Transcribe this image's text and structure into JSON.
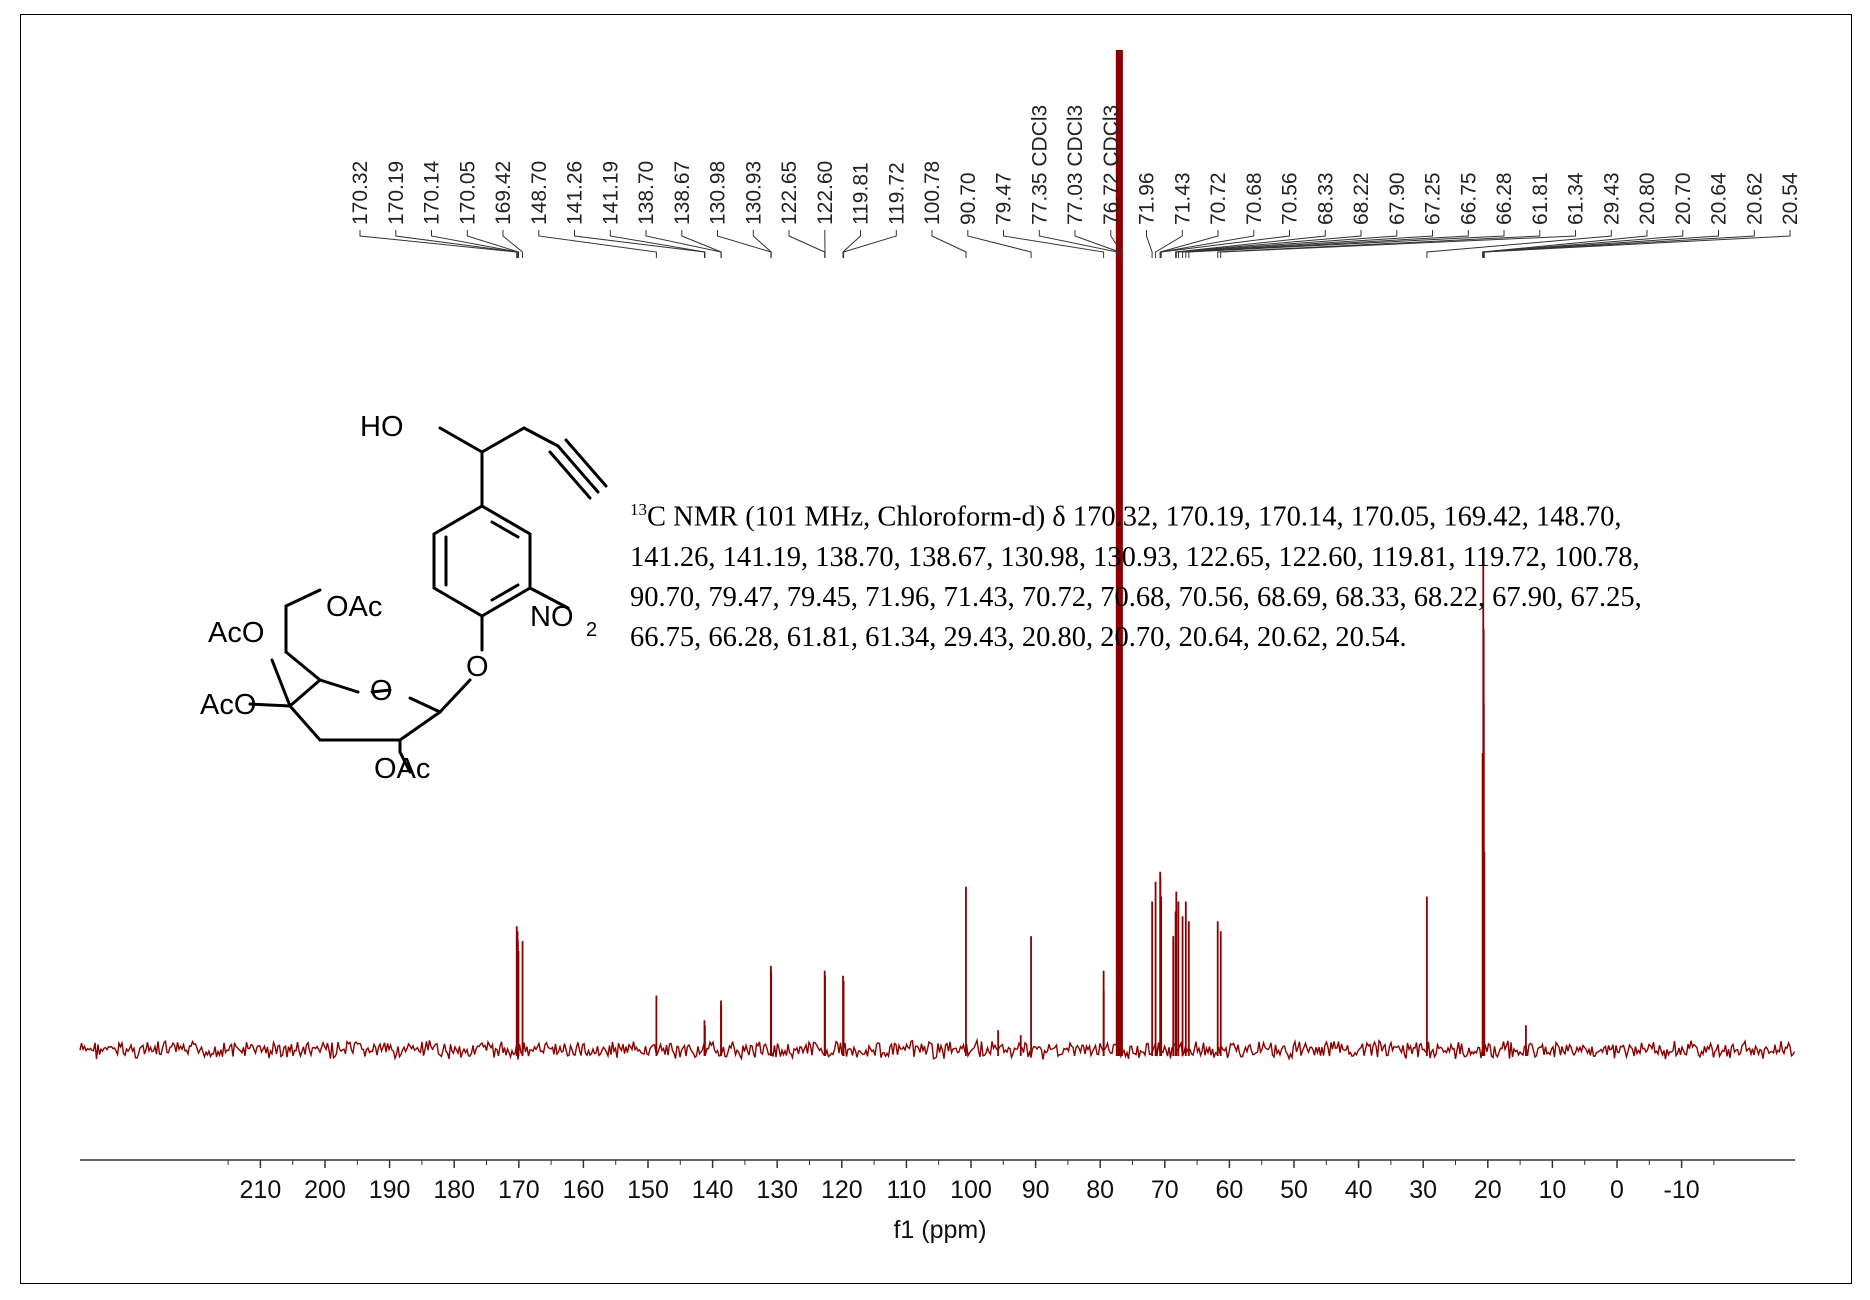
{
  "chart_data": {
    "type": "line",
    "title": "",
    "xlabel": "f1 (ppm)",
    "ylabel": "",
    "x_axis_reversed": true,
    "xlim": [
      220,
      -16
    ],
    "x_ticks": [
      210,
      200,
      190,
      180,
      170,
      160,
      150,
      140,
      130,
      120,
      110,
      100,
      90,
      80,
      70,
      60,
      50,
      40,
      30,
      20,
      10,
      0,
      -10
    ],
    "series": [
      {
        "color": "#8b0000",
        "peaks": [
          {
            "ppm": 170.32,
            "height": 0.25
          },
          {
            "ppm": 170.19,
            "height": 0.24
          },
          {
            "ppm": 170.14,
            "height": 0.22
          },
          {
            "ppm": 170.05,
            "height": 0.2
          },
          {
            "ppm": 169.42,
            "height": 0.22
          },
          {
            "ppm": 148.7,
            "height": 0.11
          },
          {
            "ppm": 141.26,
            "height": 0.06
          },
          {
            "ppm": 141.19,
            "height": 0.05
          },
          {
            "ppm": 138.7,
            "height": 0.1
          },
          {
            "ppm": 138.67,
            "height": 0.09
          },
          {
            "ppm": 130.98,
            "height": 0.17
          },
          {
            "ppm": 130.93,
            "height": 0.16
          },
          {
            "ppm": 122.65,
            "height": 0.16
          },
          {
            "ppm": 122.6,
            "height": 0.15
          },
          {
            "ppm": 119.81,
            "height": 0.15
          },
          {
            "ppm": 119.72,
            "height": 0.14
          },
          {
            "ppm": 100.78,
            "height": 0.33
          },
          {
            "ppm": 95.8,
            "height": 0.04
          },
          {
            "ppm": 92.3,
            "height": 0.03
          },
          {
            "ppm": 90.7,
            "height": 0.23
          },
          {
            "ppm": 79.47,
            "height": 0.16
          },
          {
            "ppm": 79.45,
            "height": 0.12
          },
          {
            "ppm": 77.35,
            "height": 2.2
          },
          {
            "ppm": 77.03,
            "height": 2.2
          },
          {
            "ppm": 76.72,
            "height": 2.2
          },
          {
            "ppm": 71.96,
            "height": 0.3
          },
          {
            "ppm": 71.43,
            "height": 0.34
          },
          {
            "ppm": 70.72,
            "height": 0.36
          },
          {
            "ppm": 70.68,
            "height": 0.35
          },
          {
            "ppm": 70.56,
            "height": 0.31
          },
          {
            "ppm": 68.69,
            "height": 0.23
          },
          {
            "ppm": 68.33,
            "height": 0.28
          },
          {
            "ppm": 68.22,
            "height": 0.32
          },
          {
            "ppm": 67.9,
            "height": 0.3
          },
          {
            "ppm": 67.25,
            "height": 0.27
          },
          {
            "ppm": 66.75,
            "height": 0.3
          },
          {
            "ppm": 66.28,
            "height": 0.26
          },
          {
            "ppm": 61.81,
            "height": 0.26
          },
          {
            "ppm": 61.34,
            "height": 0.24
          },
          {
            "ppm": 29.43,
            "height": 0.31
          },
          {
            "ppm": 20.8,
            "height": 0.6
          },
          {
            "ppm": 20.7,
            "height": 1.0
          },
          {
            "ppm": 20.64,
            "height": 0.85
          },
          {
            "ppm": 20.62,
            "height": 0.7
          },
          {
            "ppm": 20.54,
            "height": 0.4
          },
          {
            "ppm": 14.1,
            "height": 0.05
          }
        ]
      }
    ],
    "peak_labels": [
      "170.32",
      "170.19",
      "170.14",
      "170.05",
      "169.42",
      "148.70",
      "141.26",
      "141.19",
      "138.70",
      "138.67",
      "130.98",
      "130.93",
      "122.65",
      "122.60",
      "119.81",
      "119.72",
      "100.78",
      "90.70",
      "79.47",
      "77.35 CDCl3",
      "77.03 CDCl3",
      "76.72 CDCl3",
      "71.96",
      "71.43",
      "70.72",
      "70.68",
      "70.56",
      "68.33",
      "68.22",
      "67.90",
      "67.25",
      "66.75",
      "66.28",
      "61.81",
      "61.34",
      "29.43",
      "20.80",
      "20.70",
      "20.64",
      "20.62",
      "20.54"
    ],
    "peak_label_positions": [
      170.32,
      170.19,
      170.14,
      170.05,
      169.42,
      148.7,
      141.26,
      141.19,
      138.7,
      138.67,
      130.98,
      130.93,
      122.65,
      122.6,
      119.81,
      119.72,
      100.78,
      90.7,
      79.47,
      77.35,
      77.03,
      76.72,
      71.96,
      71.43,
      70.72,
      70.68,
      70.56,
      68.33,
      68.22,
      67.9,
      67.25,
      66.75,
      66.28,
      61.81,
      61.34,
      29.43,
      20.8,
      20.7,
      20.64,
      20.62,
      20.54
    ],
    "grid": false
  },
  "structure": {
    "labels": [
      "HO",
      "OAc",
      "AcO",
      "AcO",
      "O",
      "O",
      "OAc",
      "NO",
      "2"
    ]
  },
  "description": {
    "isotope": "13",
    "text": "C NMR (101 MHz, Chloroform-d) δ 170.32, 170.19, 170.14, 170.05, 169.42, 148.70, 141.26, 141.19, 138.70, 138.67, 130.98, 130.93, 122.65, 122.60, 119.81, 119.72, 100.78, 90.70, 79.47, 79.45, 71.96, 71.43, 70.72, 70.68, 70.56, 68.69, 68.33, 68.22, 67.90, 67.25, 66.75, 66.28, 61.81, 61.34, 29.43, 20.80, 20.70, 20.64, 20.62, 20.54."
  }
}
